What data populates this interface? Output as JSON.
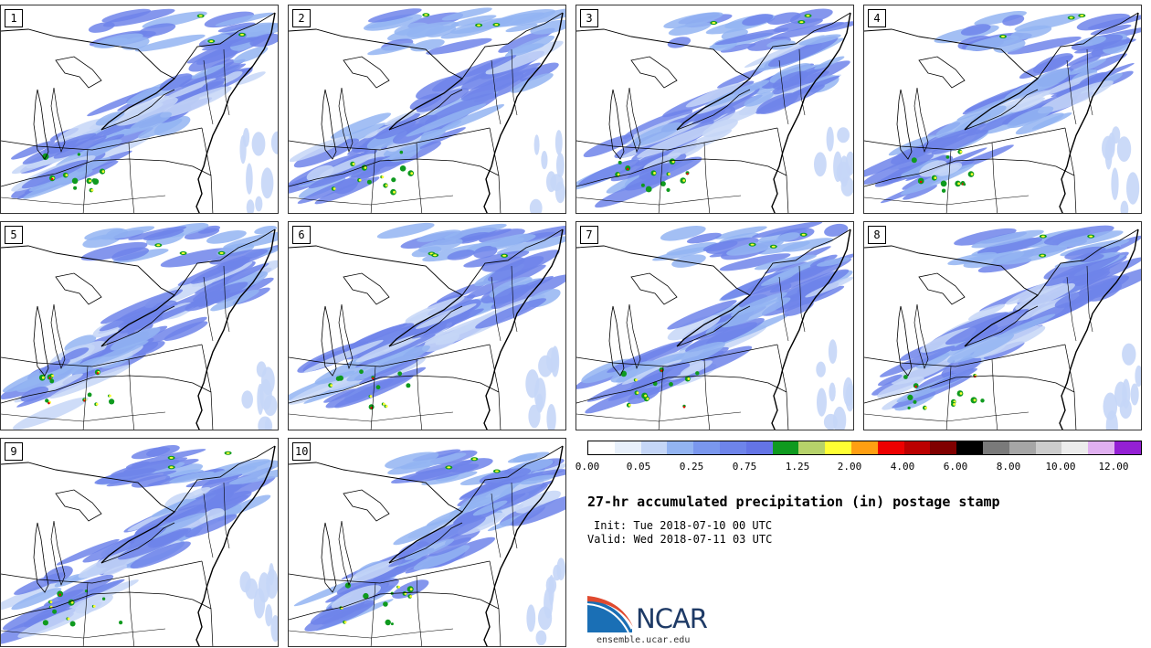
{
  "panels": [
    "1",
    "2",
    "3",
    "4",
    "5",
    "6",
    "7",
    "8",
    "9",
    "10"
  ],
  "colorbar": {
    "colors": [
      "#ffffff",
      "#e8f0fb",
      "#c5d6f7",
      "#93b4f2",
      "#7a97ee",
      "#6e84ea",
      "#6474e6",
      "#0f9a1f",
      "#b6d26a",
      "#ffff33",
      "#ff9f12",
      "#ee0000",
      "#bb0000",
      "#800000",
      "#000000",
      "#7a7a7a",
      "#a6a6a6",
      "#cccccc",
      "#ececec",
      "#e0b0f0",
      "#9420d4"
    ],
    "ticks": [
      "0.00",
      "0.05",
      "0.25",
      "0.75",
      "1.25",
      "2.00",
      "4.00",
      "6.00",
      "8.00",
      "10.00",
      "12.00"
    ]
  },
  "title": "27-hr accumulated precipitation (in) postage stamp",
  "init": "Init: Tue 2018-07-10 00 UTC",
  "valid": "Valid: Wed 2018-07-11 03 UTC",
  "logo": {
    "name": "NCAR",
    "url": "ensemble.ucar.edu"
  },
  "colors": {
    "border": "#000000",
    "precip_light": "#c5d6f7",
    "precip_mid": "#6e84ea"
  }
}
